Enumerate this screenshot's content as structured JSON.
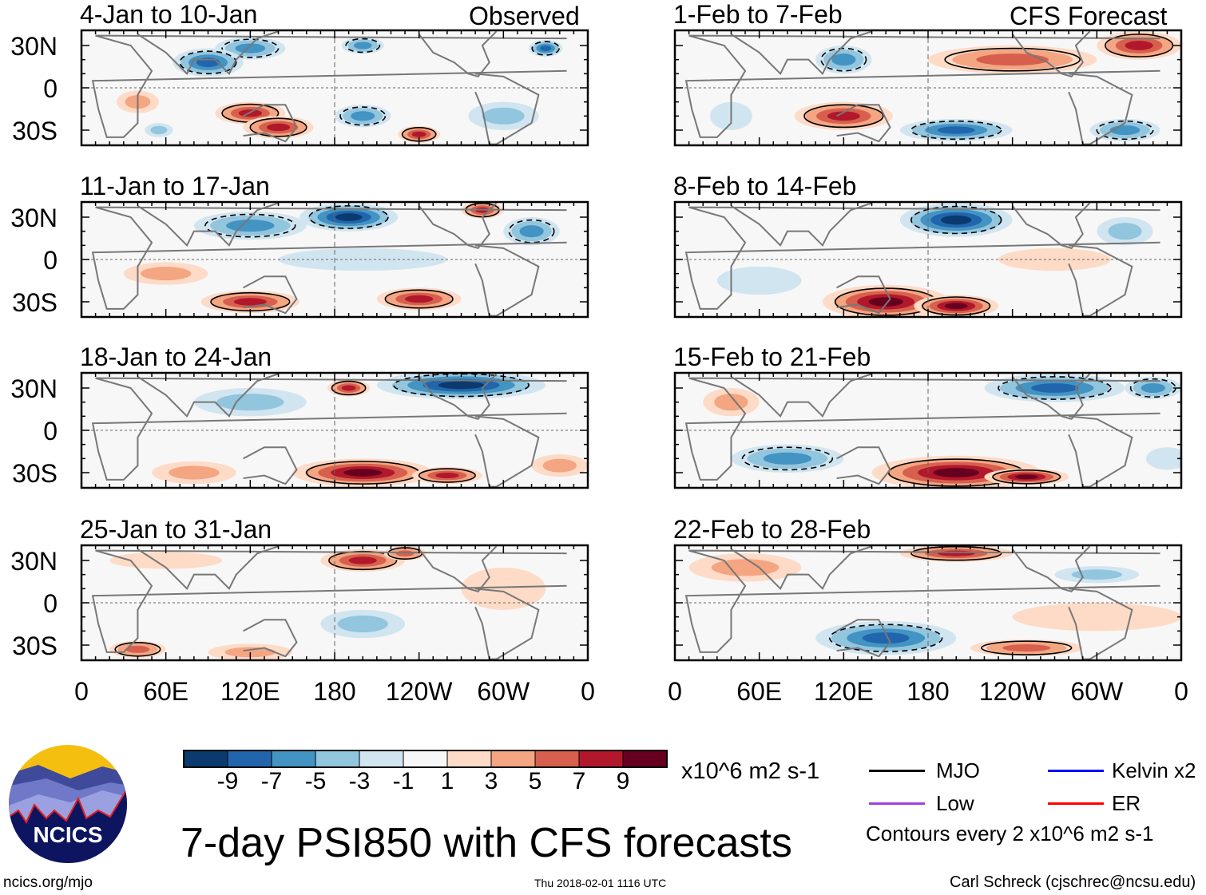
{
  "left_column": {
    "label": "Observed",
    "panels": [
      {
        "title": "4-Jan to 10-Jan"
      },
      {
        "title": "11-Jan to 17-Jan"
      },
      {
        "title": "18-Jan to 24-Jan"
      },
      {
        "title": "25-Jan to 31-Jan"
      }
    ]
  },
  "right_column": {
    "label": "CFS Forecast",
    "panels": [
      {
        "title": "1-Feb to 7-Feb"
      },
      {
        "title": "8-Feb to 14-Feb"
      },
      {
        "title": "15-Feb to 21-Feb"
      },
      {
        "title": "22-Feb to 28-Feb"
      }
    ]
  },
  "lat_labels": [
    "30N",
    "0",
    "30S"
  ],
  "lon_labels": [
    "0",
    "60E",
    "120E",
    "180",
    "120W",
    "60W",
    "0"
  ],
  "colorbar": {
    "labels": [
      "-9",
      "-7",
      "-5",
      "-3",
      "-1",
      "1",
      "3",
      "5",
      "7",
      "9"
    ],
    "colors": [
      "#0a3a6e",
      "#2166ac",
      "#4393c3",
      "#92c5de",
      "#d1e5f0",
      "#f7f7f7",
      "#fddbc7",
      "#f4a582",
      "#d6604d",
      "#b2182b",
      "#67001f"
    ],
    "units": "x10^6 m2 s-1"
  },
  "legend": {
    "items": [
      {
        "label": "MJO",
        "color": "#000000"
      },
      {
        "label": "Kelvin x2",
        "color": "#0000ff"
      },
      {
        "label": "Low",
        "color": "#a040e0"
      },
      {
        "label": "ER",
        "color": "#ff0000"
      }
    ],
    "contours_note": "Contours every 2 x10^6 m2 s-1"
  },
  "title": "7-day PSI850 with CFS forecasts",
  "logo_text": "NCICS",
  "footer": {
    "url": "ncics.org/mjo",
    "timestamp": "Thu 2018-02-01 1116 UTC",
    "author": "Carl Schreck (cjschrec@ncsu.edu)"
  }
}
